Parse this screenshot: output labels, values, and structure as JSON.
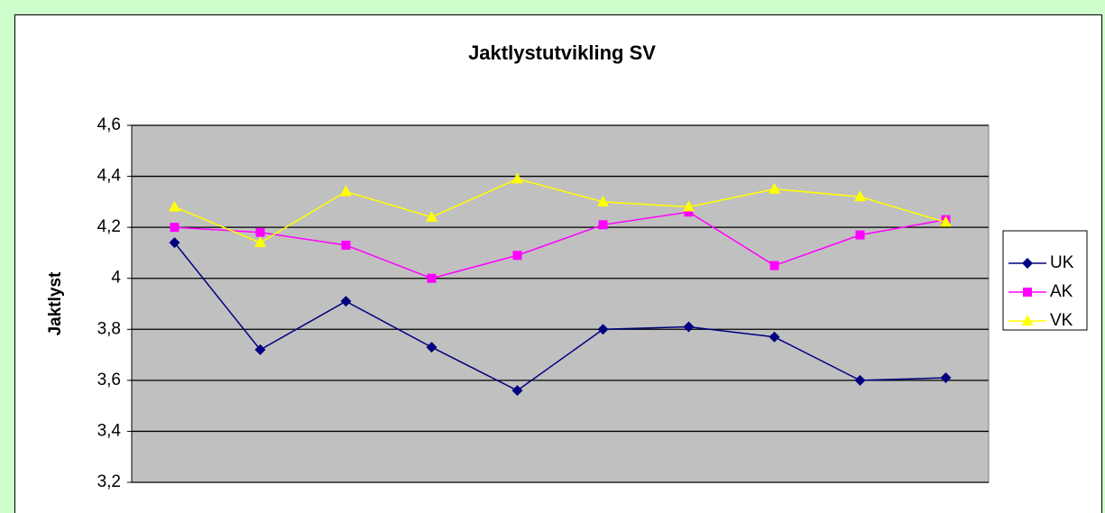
{
  "chart_data": {
    "type": "line",
    "title": "Jaktlystutvikling SV",
    "y_label": "Jaktlyst",
    "categories": [
      null,
      null,
      null,
      null,
      null,
      null,
      null,
      null,
      null,
      null
    ],
    "series": [
      {
        "name": "UK",
        "color": "#000080",
        "marker": "diamond",
        "values": [
          4.14,
          3.72,
          3.91,
          3.73,
          3.56,
          3.8,
          3.81,
          3.77,
          3.6,
          3.61
        ]
      },
      {
        "name": "AK",
        "color": "#ff00ff",
        "marker": "square",
        "values": [
          4.2,
          4.18,
          4.13,
          4.0,
          4.09,
          4.21,
          4.26,
          4.05,
          4.17,
          4.23
        ]
      },
      {
        "name": "VK",
        "color": "#ffff00",
        "marker": "triangle",
        "values": [
          4.28,
          4.14,
          4.34,
          4.24,
          4.39,
          4.3,
          4.28,
          4.35,
          4.32,
          4.22
        ]
      }
    ],
    "ylim": [
      3.2,
      4.6
    ],
    "yticks": [
      {
        "value": 3.2,
        "label": "3,2"
      },
      {
        "value": 3.4,
        "label": "3,4"
      },
      {
        "value": 3.6,
        "label": "3,6"
      },
      {
        "value": 3.8,
        "label": "3,8"
      },
      4,
      {
        "value": 4.2,
        "label": "4,2"
      },
      {
        "value": 4.4,
        "label": "4,4"
      },
      {
        "value": 4.6,
        "label": "4,6"
      }
    ],
    "grid": true,
    "legend": "right",
    "plot_background": "#c0c0c0"
  }
}
